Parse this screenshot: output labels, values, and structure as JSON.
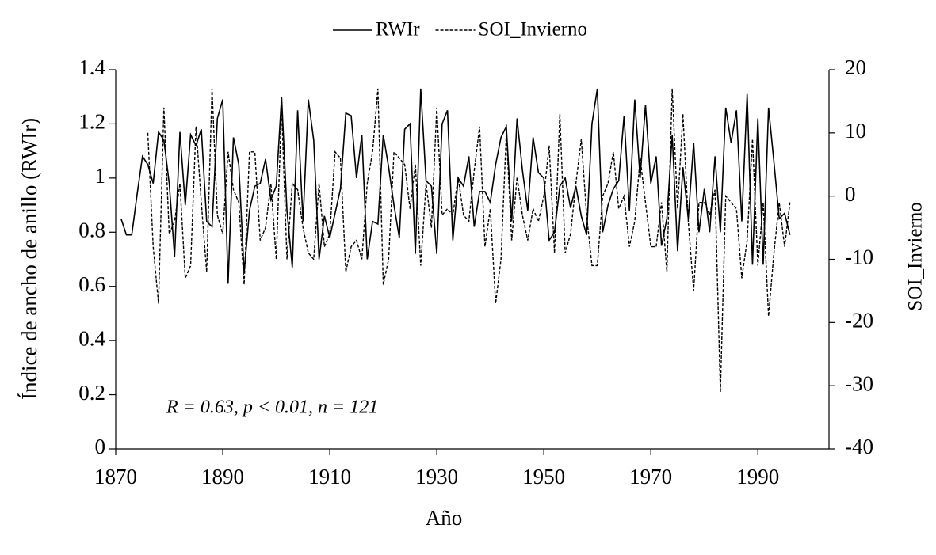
{
  "chart_data": {
    "type": "line",
    "x_label": "Año",
    "y_label": "Índice de ancho de anillo (RWIr)",
    "y2_label": "SOI_Invierno",
    "annotation": "R = 0.63, p < 0.01, n = 121",
    "legend": "top",
    "xlim": [
      1870,
      2003.3
    ],
    "xticks": [
      1870,
      1890,
      1910,
      1930,
      1950,
      1970,
      1990
    ],
    "ylim": [
      0,
      1.4
    ],
    "yticks": [
      0,
      0.2,
      0.4,
      0.6,
      0.8,
      1,
      1.2,
      1.4
    ],
    "y2lim": [
      -40,
      20
    ],
    "y2ticks": [
      -40,
      -30,
      -20,
      -10,
      0,
      10,
      20
    ],
    "x": [
      1871,
      1872,
      1873,
      1874,
      1875,
      1876,
      1877,
      1878,
      1879,
      1880,
      1881,
      1882,
      1883,
      1884,
      1885,
      1886,
      1887,
      1888,
      1889,
      1890,
      1891,
      1892,
      1893,
      1894,
      1895,
      1896,
      1897,
      1898,
      1899,
      1900,
      1901,
      1902,
      1903,
      1904,
      1905,
      1906,
      1907,
      1908,
      1909,
      1910,
      1911,
      1912,
      1913,
      1914,
      1915,
      1916,
      1917,
      1918,
      1919,
      1920,
      1921,
      1922,
      1923,
      1924,
      1925,
      1926,
      1927,
      1928,
      1929,
      1930,
      1931,
      1932,
      1933,
      1934,
      1935,
      1936,
      1937,
      1938,
      1939,
      1940,
      1941,
      1942,
      1943,
      1944,
      1945,
      1946,
      1947,
      1948,
      1949,
      1950,
      1951,
      1952,
      1953,
      1954,
      1955,
      1956,
      1957,
      1958,
      1959,
      1960,
      1961,
      1962,
      1963,
      1964,
      1965,
      1966,
      1967,
      1968,
      1969,
      1970,
      1971,
      1972,
      1973,
      1974,
      1975,
      1976,
      1977,
      1978,
      1979,
      1980,
      1981,
      1982,
      1983,
      1984,
      1985,
      1986,
      1987,
      1988,
      1989,
      1990,
      1991,
      1992,
      1993,
      1994,
      1995,
      1996
    ],
    "series": [
      {
        "name": "RWIr",
        "color": "#000000",
        "dash": "solid",
        "axis": "y",
        "values": [
          0.85,
          0.79,
          0.79,
          0.94,
          1.08,
          1.05,
          0.98,
          1.17,
          1.14,
          0.98,
          0.71,
          1.17,
          0.9,
          1.16,
          1.12,
          1.18,
          0.84,
          0.82,
          1.22,
          1.29,
          0.61,
          1.15,
          1.05,
          0.65,
          0.88,
          0.97,
          0.98,
          1.07,
          0.92,
          0.97,
          1.3,
          0.88,
          0.67,
          1.25,
          0.84,
          1.29,
          1.14,
          0.7,
          0.86,
          0.78,
          0.87,
          0.96,
          1.24,
          1.23,
          1.0,
          1.16,
          0.7,
          0.84,
          0.83,
          1.16,
          1.04,
          0.9,
          0.78,
          1.18,
          1.2,
          0.72,
          1.33,
          0.99,
          0.97,
          0.72,
          1.2,
          1.25,
          0.77,
          1.0,
          0.97,
          1.08,
          0.82,
          0.95,
          0.95,
          0.91,
          1.05,
          1.15,
          1.19,
          0.84,
          1.22,
          1.03,
          0.88,
          1.15,
          1.02,
          1.0,
          0.77,
          0.8,
          0.97,
          1.0,
          0.89,
          0.97,
          0.86,
          0.79,
          1.2,
          1.33,
          0.8,
          0.9,
          0.96,
          0.99,
          1.23,
          0.88,
          1.29,
          1.0,
          1.27,
          0.98,
          1.08,
          0.75,
          0.85,
          1.16,
          0.73,
          1.04,
          0.85,
          1.13,
          0.8,
          0.96,
          0.8,
          1.08,
          0.8,
          1.26,
          1.13,
          1.25,
          0.84,
          1.31,
          0.68,
          1.22,
          0.68,
          1.26,
          1.06,
          0.85,
          0.87,
          0.79
        ]
      },
      {
        "name": "SOI_Invierno",
        "color": "#000000",
        "dash": "dashed",
        "axis": "y2",
        "values": [
          null,
          null,
          null,
          null,
          null,
          10,
          -8,
          -17,
          14,
          -6,
          -4,
          2,
          -13,
          -11,
          11,
          -1,
          -12,
          17,
          -3,
          -6,
          7,
          1,
          -1,
          -14,
          7,
          7,
          -7,
          -5,
          2,
          -10,
          14,
          -10,
          2,
          1,
          -5,
          -9,
          -10,
          2,
          -8,
          -6,
          7,
          6,
          -12,
          -8,
          -7,
          -10,
          2,
          7,
          17,
          -14,
          -10,
          7,
          6,
          5,
          -2,
          5,
          -11,
          2,
          -5,
          14,
          -3,
          -2,
          -3,
          3,
          -3,
          -4,
          4,
          11,
          -8,
          -2,
          -17,
          -10,
          10,
          -7,
          3,
          -3,
          -7,
          -2,
          -4,
          0,
          8,
          -9,
          13,
          -9,
          -6,
          2,
          9,
          -3,
          -11,
          -11,
          0,
          2,
          7,
          -2,
          0,
          -8,
          -4,
          6,
          -1,
          -8,
          -8,
          -1,
          -12,
          17,
          -2,
          13,
          -4,
          -15,
          -1,
          -1,
          -3,
          1,
          -31,
          0,
          -1,
          -2,
          -13,
          -7,
          9,
          -11,
          -1,
          -19,
          -9,
          -1,
          -8,
          -1
        ]
      }
    ]
  }
}
